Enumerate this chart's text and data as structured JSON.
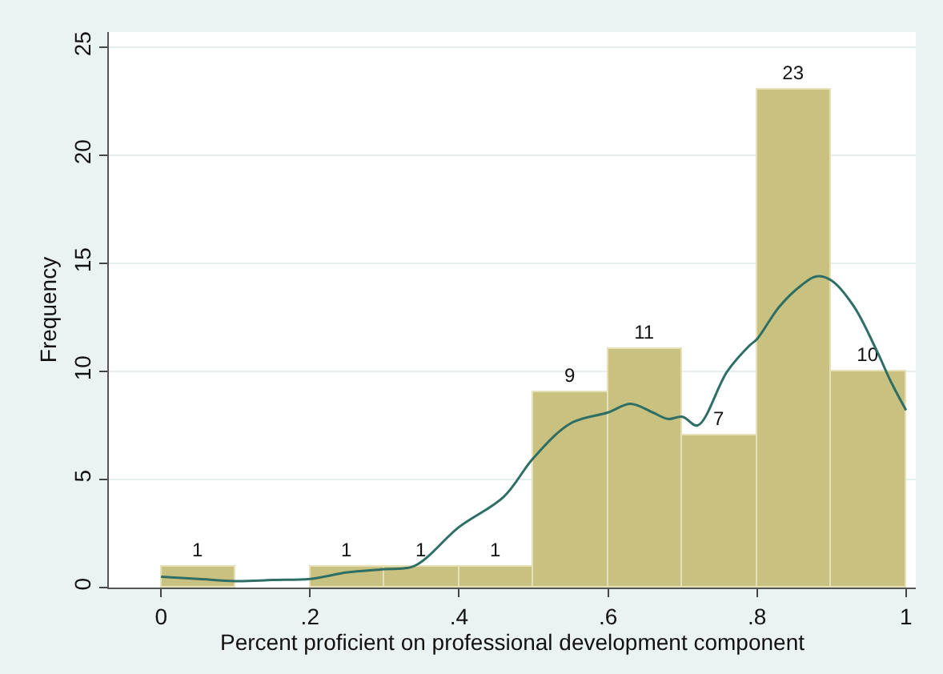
{
  "chart_data": {
    "type": "histogram",
    "xlabel": "Percent proficient on professional development component",
    "ylabel": "Frequency",
    "bins": [
      0,
      0.1,
      0.2,
      0.3,
      0.4,
      0.5,
      0.6,
      0.7,
      0.8,
      0.9,
      1.0
    ],
    "values": [
      1,
      0,
      1,
      1,
      1,
      9,
      11,
      7,
      23,
      10
    ],
    "value_labels": [
      "1",
      null,
      "1",
      "1",
      "1",
      "9",
      "11",
      "7",
      "23",
      "10"
    ],
    "color": "#c9c17f",
    "series": [
      {
        "type": "line",
        "color": "#2e6e64",
        "x": [
          0,
          0.05,
          0.1,
          0.15,
          0.2,
          0.25,
          0.3,
          0.34,
          0.4,
          0.46,
          0.5,
          0.55,
          0.6,
          0.63,
          0.66,
          0.68,
          0.7,
          0.72,
          0.76,
          0.79,
          0.8,
          0.83,
          0.86,
          0.88,
          0.9,
          0.93,
          0.96,
          0.98,
          1.0
        ],
        "values": [
          0.5,
          0.4,
          0.3,
          0.35,
          0.4,
          0.7,
          0.85,
          1.0,
          2.8,
          4.2,
          6.0,
          7.6,
          8.1,
          8.5,
          8.1,
          7.8,
          7.9,
          7.5,
          10.0,
          11.2,
          11.5,
          13.0,
          14.0,
          14.4,
          14.2,
          13.0,
          11.0,
          9.5,
          8.2
        ]
      }
    ],
    "xlim": [
      -0.07,
      1.013
    ],
    "ylim": [
      0,
      25.7
    ],
    "xticks": [
      0,
      {
        "value": 0.2,
        "label": ".2"
      },
      {
        "value": 0.4,
        "label": ".4"
      },
      {
        "value": 0.6,
        "label": ".6"
      },
      {
        "value": 0.8,
        "label": ".8"
      },
      1
    ],
    "yticks": [
      0,
      5,
      10,
      15,
      20,
      25
    ],
    "grid": "y"
  }
}
